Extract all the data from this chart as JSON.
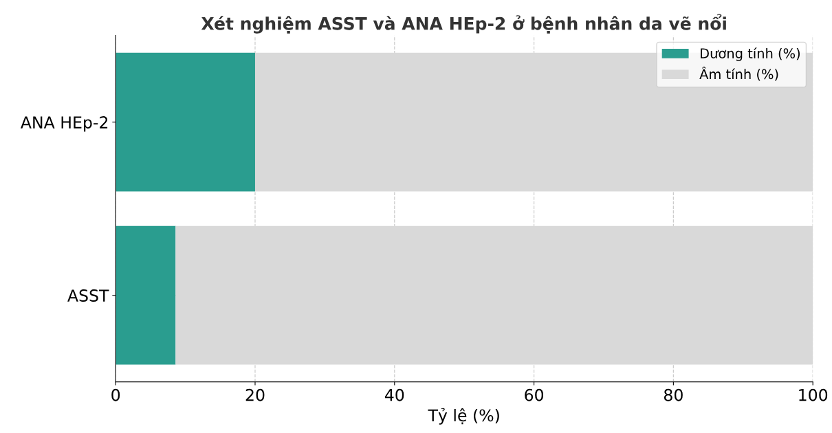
{
  "chart_data": {
    "type": "bar",
    "orientation": "horizontal",
    "stacked": true,
    "title": "Xét nghiệm ASST và ANA HEp-2 ở bệnh nhân da vẽ nổi",
    "xlabel": "Tỷ lệ (%)",
    "categories": [
      "ANA HEp-2",
      "ASST"
    ],
    "series": [
      {
        "name": "Dương tính (%)",
        "color": "#2a9d8f",
        "values": [
          20,
          8.6
        ]
      },
      {
        "name": "Âm tính (%)",
        "color": "#d9d9d9",
        "values": [
          80,
          91.4
        ]
      }
    ],
    "xlim": [
      0,
      100
    ],
    "xticks": [
      0,
      20,
      40,
      60,
      80,
      100
    ],
    "grid": true,
    "legend": "top right"
  }
}
